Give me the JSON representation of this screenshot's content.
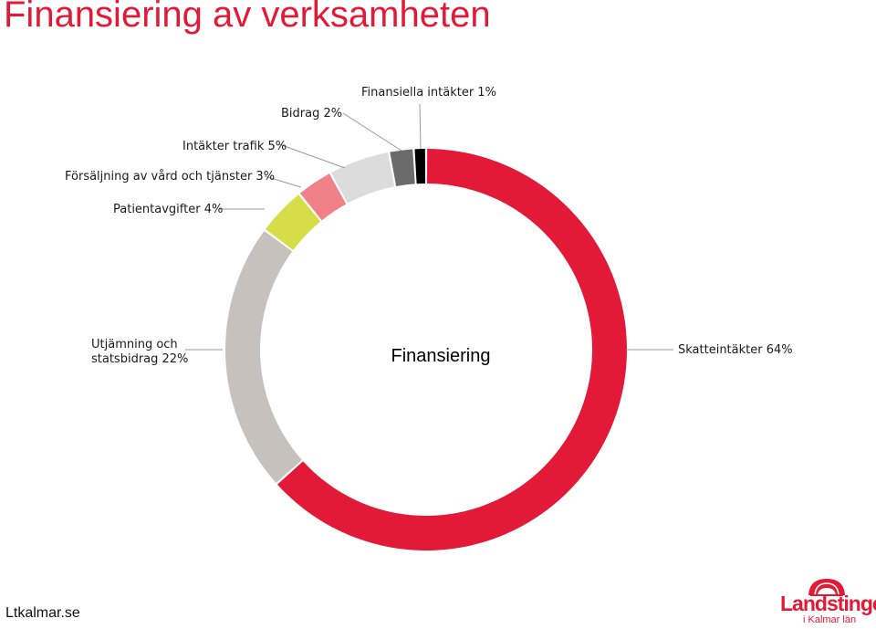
{
  "slide": {
    "title": "Finansiering av verksamheten",
    "footer_url": "Ltkalmar.se"
  },
  "logo": {
    "name": "Landstinget",
    "subtitle": "i Kalmar län"
  },
  "chart_data": {
    "type": "donut",
    "center_label": "Finansiering",
    "unit": "%",
    "slices": [
      {
        "label": "Skatteintäkter 64%",
        "value": 64,
        "color": "#e31a37"
      },
      {
        "label": "Utjämning och statsbidrag 22%",
        "value": 22,
        "color": "#c6c1bc"
      },
      {
        "label": "Patientavgifter 4%",
        "value": 4,
        "color": "#d6dd46"
      },
      {
        "label": "Försäljning av vård och tjänster 3%",
        "value": 3,
        "color": "#f08189"
      },
      {
        "label": "Intäkter trafik 5%",
        "value": 5,
        "color": "#dcdcdc"
      },
      {
        "label": "Bidrag 2%",
        "value": 2,
        "color": "#6b6b6b"
      },
      {
        "label": "Finansiella intäkter 1%",
        "value": 1,
        "color": "#000000"
      }
    ],
    "label_lines": [
      [
        "Skatteintäkter 64%"
      ],
      [
        "Utjämning och",
        "statsbidrag 22%"
      ],
      [
        "Patientavgifter 4%"
      ],
      [
        "Försäljning av vård och tjänster 3%"
      ],
      [
        "Intäkter trafik 5%"
      ],
      [
        "Bidrag 2%"
      ],
      [
        "Finansiella intäkter 1%"
      ]
    ]
  }
}
